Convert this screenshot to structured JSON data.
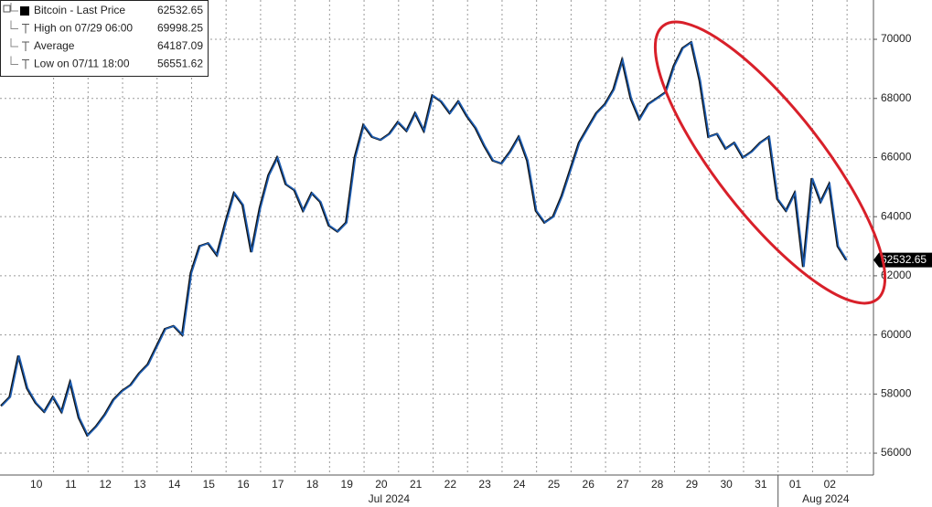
{
  "chart_data": {
    "type": "line",
    "categories": [
      null,
      null,
      null,
      null,
      "10",
      null,
      null,
      null,
      "11",
      null,
      null,
      null,
      "12",
      null,
      null,
      null,
      "13",
      null,
      null,
      null,
      "14",
      null,
      null,
      null,
      "15",
      null,
      null,
      null,
      "16",
      null,
      null,
      null,
      "17",
      null,
      null,
      null,
      "18",
      null,
      null,
      null,
      "19",
      null,
      null,
      null,
      "20",
      null,
      null,
      null,
      "21",
      null,
      null,
      null,
      "22",
      null,
      null,
      null,
      "23",
      null,
      null,
      null,
      "24",
      null,
      null,
      null,
      "25",
      null,
      null,
      null,
      "26",
      null,
      null,
      null,
      "27",
      null,
      null,
      null,
      "28",
      null,
      null,
      null,
      "29",
      null,
      null,
      null,
      "30",
      null,
      null,
      null,
      "31",
      null,
      null,
      null,
      "01",
      null,
      null,
      null,
      "02",
      null,
      null
    ],
    "x_groups": [
      "Jul 2024",
      "Aug 2024"
    ],
    "series": [
      {
        "name": "Bitcoin - Last Price",
        "color": "#1f5fb4",
        "last_value": 62532.65,
        "values": [
          57600,
          57900,
          59300,
          58200,
          57700,
          57400,
          57900,
          57400,
          58400,
          57200,
          56600,
          56900,
          57300,
          57800,
          58100,
          58300,
          58700,
          59000,
          59600,
          60200,
          60300,
          60000,
          62100,
          63000,
          63100,
          62700,
          63800,
          64800,
          64400,
          62800,
          64300,
          65400,
          66000,
          65100,
          64900,
          64200,
          64800,
          64500,
          63700,
          63500,
          63800,
          66000,
          67100,
          66700,
          66600,
          66800,
          67200,
          66900,
          67500,
          66900,
          68100,
          67900,
          67500,
          67900,
          67400,
          67000,
          66400,
          65900,
          65800,
          66200,
          66700,
          65900,
          64200,
          63800,
          64000,
          64700,
          65600,
          66500,
          67000,
          67500,
          67800,
          68300,
          69300,
          68000,
          67300,
          67800,
          68000,
          68200,
          69100,
          69700,
          69900,
          68600,
          66700,
          66800,
          66300,
          66500,
          66000,
          66200,
          66500,
          66700,
          64600,
          64200,
          64800,
          62300,
          65300,
          64500,
          65100,
          63000,
          62532.65
        ]
      }
    ],
    "stats": [
      {
        "label": "High on 07/29 06:00",
        "value": 69998.25
      },
      {
        "label": "Average",
        "value": 64187.09
      },
      {
        "label": "Low on 07/11 18:00",
        "value": 56551.62
      }
    ],
    "ylim": [
      55260,
      71330
    ],
    "yticks": [
      56000,
      58000,
      60000,
      62000,
      64000,
      66000,
      68000,
      70000
    ],
    "grid": true
  }
}
